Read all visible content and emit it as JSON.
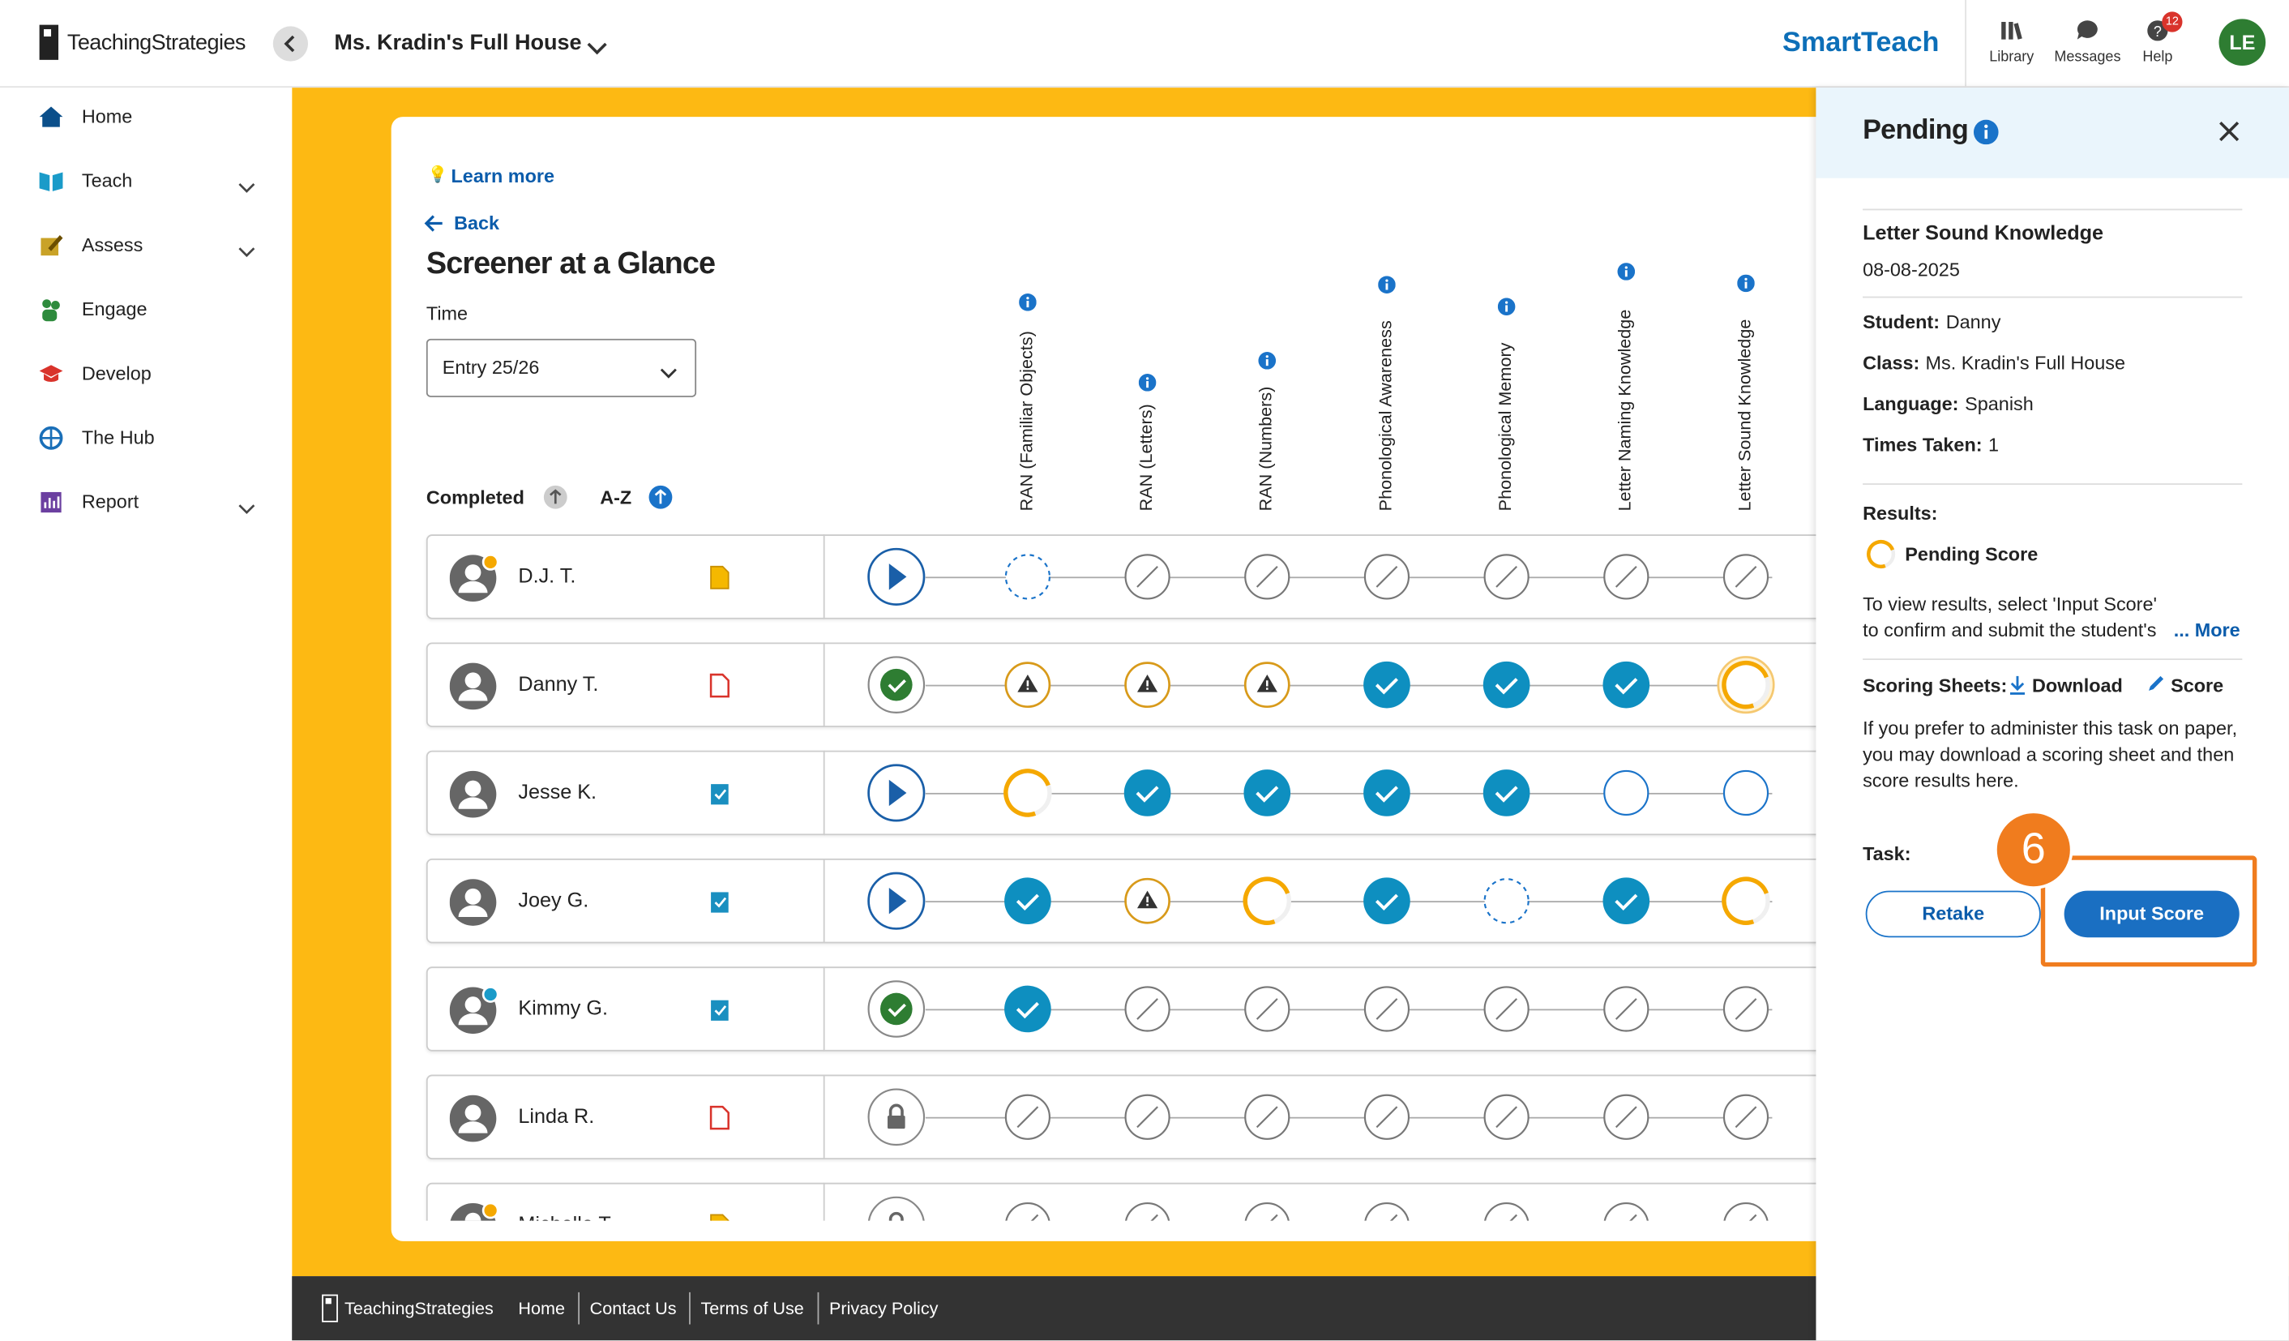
{
  "header": {
    "logo": "TeachingStrategies",
    "class_name": "Ms. Kradin's Full House",
    "brand": "SmartTeach",
    "tools": [
      "Library",
      "Messages",
      "Help"
    ],
    "help_badge": "12",
    "avatar": "LE"
  },
  "nav": [
    "Home",
    "Teach",
    "Assess",
    "Engage",
    "Develop",
    "The Hub",
    "Report"
  ],
  "main": {
    "learn_more": "Learn more",
    "back": "Back",
    "title": "Screener at a Glance",
    "time_label": "Time",
    "time_value": "Entry 25/26",
    "sort": [
      "Completed",
      "A-Z"
    ],
    "columns": [
      "RAN (Familiar Objects)",
      "RAN (Letters)",
      "RAN (Numbers)",
      "Phonological Awareness",
      "Phonological Memory",
      "Letter Naming Knowledge",
      "Letter Sound Knowledge"
    ],
    "students": [
      "D.J. T.",
      "Danny T.",
      "Jesse K.",
      "Joey G.",
      "Kimmy G.",
      "Linda R.",
      "Michelle T."
    ]
  },
  "panel": {
    "title": "Pending",
    "task": "Letter Sound Knowledge",
    "date": "08-08-2025",
    "fields": [
      {
        "label": "Student:",
        "value": "Danny"
      },
      {
        "label": "Class:",
        "value": "Ms. Kradin's Full House"
      },
      {
        "label": "Language:",
        "value": "Spanish"
      },
      {
        "label": "Times Taken:",
        "value": "1"
      }
    ],
    "results_label": "Results:",
    "result": "Pending Score",
    "description": "To view results, select 'Input Score' to confirm and submit the student's re",
    "more": "... More",
    "scoring_label": "Scoring Sheets:",
    "download": "Download",
    "score": "Score",
    "paper_note": "If you prefer to administer this task on paper, you may download a scoring sheet and then score results here.",
    "task_label": "Task:",
    "retake": "Retake",
    "input_score": "Input Score",
    "step": "6"
  },
  "footer": {
    "logo": "TeachingStrategies",
    "links": [
      "Home",
      "Contact Us",
      "Terms of Use",
      "Privacy Policy"
    ]
  }
}
